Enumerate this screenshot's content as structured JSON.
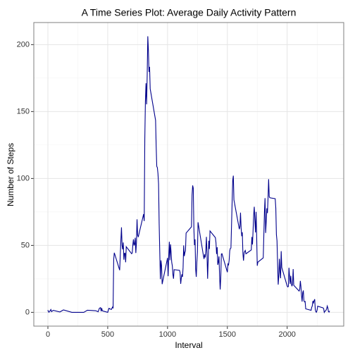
{
  "chart_data": {
    "type": "line",
    "title": "A Time Series Plot: Average Daily Activity Pattern",
    "xlabel": "Interval",
    "ylabel": "Number of Steps",
    "x": [
      0,
      5,
      10,
      25,
      30,
      45,
      100,
      130,
      200,
      230,
      300,
      330,
      400,
      420,
      430,
      440,
      445,
      450,
      455,
      500,
      510,
      530,
      540,
      545,
      550,
      555,
      600,
      610,
      615,
      620,
      625,
      630,
      635,
      640,
      645,
      650,
      655,
      700,
      705,
      710,
      715,
      720,
      725,
      730,
      735,
      740,
      745,
      750,
      755,
      800,
      805,
      810,
      815,
      820,
      825,
      830,
      835,
      840,
      845,
      850,
      855,
      900,
      905,
      910,
      915,
      920,
      925,
      930,
      935,
      940,
      945,
      950,
      955,
      1000,
      1005,
      1010,
      1015,
      1020,
      1025,
      1030,
      1035,
      1040,
      1045,
      1050,
      1055,
      1100,
      1105,
      1110,
      1115,
      1120,
      1125,
      1130,
      1135,
      1140,
      1145,
      1150,
      1155,
      1200,
      1205,
      1210,
      1215,
      1220,
      1225,
      1230,
      1235,
      1240,
      1245,
      1250,
      1255,
      1300,
      1305,
      1310,
      1315,
      1320,
      1325,
      1330,
      1335,
      1340,
      1345,
      1350,
      1355,
      1400,
      1405,
      1410,
      1415,
      1420,
      1425,
      1430,
      1435,
      1440,
      1445,
      1450,
      1455,
      1500,
      1505,
      1510,
      1515,
      1520,
      1525,
      1530,
      1535,
      1540,
      1545,
      1550,
      1555,
      1600,
      1605,
      1610,
      1615,
      1620,
      1625,
      1630,
      1635,
      1640,
      1645,
      1650,
      1655,
      1700,
      1705,
      1710,
      1715,
      1720,
      1725,
      1730,
      1735,
      1740,
      1745,
      1750,
      1755,
      1800,
      1805,
      1810,
      1815,
      1820,
      1825,
      1830,
      1835,
      1840,
      1845,
      1850,
      1855,
      1900,
      1905,
      1910,
      1915,
      1920,
      1925,
      1930,
      1935,
      1940,
      1945,
      1950,
      1955,
      2000,
      2005,
      2010,
      2015,
      2020,
      2025,
      2030,
      2035,
      2040,
      2045,
      2050,
      2055,
      2100,
      2105,
      2110,
      2115,
      2120,
      2125,
      2130,
      2135,
      2140,
      2145,
      2150,
      2155,
      2200,
      2205,
      2210,
      2215,
      2220,
      2225,
      2230,
      2235,
      2240,
      2245,
      2250,
      2255,
      2300,
      2305,
      2310,
      2315,
      2320,
      2325,
      2330,
      2335,
      2340,
      2345,
      2350,
      2355
    ],
    "series": [
      {
        "name": "steps",
        "color": "#00008b",
        "values": [
          1.7,
          0.3,
          0.1,
          2.1,
          0.5,
          1.5,
          0.3,
          1.8,
          0,
          0,
          0,
          1.6,
          1.2,
          0.4,
          3.0,
          3.5,
          0.8,
          3.1,
          1.1,
          0,
          3.0,
          2.1,
          3.9,
          3.0,
          39.5,
          44.5,
          31.5,
          53.8,
          63.5,
          50,
          47.1,
          52.2,
          39.3,
          44.0,
          44.2,
          37.4,
          49.0,
          43.8,
          44.4,
          50.5,
          54.5,
          49.9,
          51.0,
          55.7,
          44.3,
          52.3,
          69.5,
          57.8,
          56.2,
          73.4,
          68.2,
          129.4,
          157.5,
          171.2,
          155.4,
          177.3,
          206.2,
          195.9,
          179.6,
          183.4,
          167.0,
          143.5,
          124.0,
          109.1,
          108.1,
          103.7,
          96.0,
          66.2,
          45.2,
          24.8,
          38.8,
          35.0,
          21.1,
          40.6,
          27.0,
          42.4,
          52.7,
          38.9,
          50.8,
          44.3,
          37.4,
          34.7,
          28.3,
          25.1,
          31.9,
          31.4,
          29.7,
          21.3,
          25.5,
          28.4,
          26.5,
          33.4,
          50.0,
          42.0,
          44.6,
          46.0,
          59.2,
          63.9,
          87.7,
          94.8,
          92.8,
          63.4,
          50.2,
          54.5,
          32.4,
          26.5,
          37.7,
          45.1,
          67.3,
          42.3,
          39.9,
          43.3,
          41.0,
          46.2,
          56.4,
          42.8,
          25.1,
          40.0,
          53.5,
          47.3,
          60.8,
          55.8,
          52.0,
          43.6,
          48.7,
          35.5,
          37.5,
          41.8,
          27.5,
          17.1,
          26.1,
          43.6,
          43.8,
          30.0,
          36.1,
          35.5,
          38.8,
          46.0,
          47.8,
          48.1,
          65.3,
          82.9,
          98.7,
          102.1,
          84.0,
          62.1,
          64.1,
          74.5,
          63.2,
          56.9,
          59.8,
          43.9,
          38.6,
          44.7,
          45.5,
          46.2,
          43.7,
          46.6,
          56.3,
          50.7,
          61.2,
          72.7,
          78.9,
          68.9,
          59.7,
          75.1,
          56.5,
          34.8,
          37.5,
          40.7,
          58.0,
          74.7,
          85.3,
          59.3,
          67.8,
          77.7,
          74.2,
          85.3,
          99.5,
          86.6,
          85.6,
          84.9,
          77.8,
          58.0,
          53.4,
          36.3,
          20.7,
          27.4,
          40.0,
          30.2,
          25.5,
          45.7,
          33.5,
          19.6,
          19.0,
          19.3,
          33.3,
          26.8,
          21.2,
          27.3,
          21.3,
          19.5,
          21.3,
          32.3,
          20.2,
          15.9,
          17.2,
          23.5,
          19.2,
          12.5,
          8.0,
          14.7,
          16.3,
          8.7,
          7.8,
          8.1,
          2.6,
          1.5,
          3.7,
          4.8,
          8.5,
          7.1,
          8.7,
          9.8,
          2.2,
          0.3,
          0.1,
          1.6,
          4.6,
          3.3,
          2.8,
          0,
          0.8,
          1.0,
          1.6,
          2.6,
          4.7,
          3.3,
          0.6,
          0.2,
          1.1
        ]
      }
    ],
    "xlim": [
      -117.75,
      2472.75
    ],
    "xticks": [
      0,
      500,
      1000,
      1500,
      2000
    ],
    "x_minor_ticks": [
      250,
      750,
      1250,
      1750,
      2250
    ],
    "ylim": [
      -10.3,
      216.5
    ],
    "yticks": [
      0,
      50,
      100,
      150,
      200
    ],
    "y_minor_ticks": [
      25,
      75,
      125,
      175
    ],
    "grid": true
  }
}
